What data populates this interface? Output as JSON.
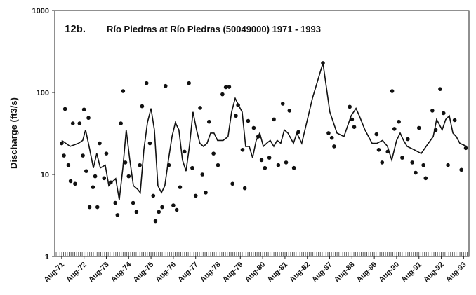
{
  "chart_data": {
    "type": "combo",
    "title_label": "12b.",
    "title": "Río Piedras at Río Piedras (50049000) 1971 - 1993",
    "y_label": "Discharge (ft3/s)",
    "yscale": "log",
    "ylim": [
      1,
      1000
    ],
    "yticks": [
      1,
      10,
      100,
      1000
    ],
    "xlim": [
      -0.31,
      18.24
    ],
    "xticks": [
      {
        "value": 0,
        "label": "Aug-71"
      },
      {
        "value": 1,
        "label": "Aug-72"
      },
      {
        "value": 2,
        "label": "Aug-73"
      },
      {
        "value": 3,
        "label": "Aug-74"
      },
      {
        "value": 4,
        "label": "Aug-75"
      },
      {
        "value": 5,
        "label": "Aug-76"
      },
      {
        "value": 6,
        "label": "Aug-77"
      },
      {
        "value": 7,
        "label": "Aug-78"
      },
      {
        "value": 8,
        "label": "Aug-79"
      },
      {
        "value": 9,
        "label": "Aug-80"
      },
      {
        "value": 10,
        "label": "Aug-81"
      },
      {
        "value": 11,
        "label": "Aug-82"
      },
      {
        "value": 12,
        "label": "Aug-87"
      },
      {
        "value": 13,
        "label": "Aug-88"
      },
      {
        "value": 14,
        "label": "Aug-89"
      },
      {
        "value": 15,
        "label": "Aug-90"
      },
      {
        "value": 16,
        "label": "Aug-91"
      },
      {
        "value": 17,
        "label": "Aug-92"
      },
      {
        "value": 18,
        "label": "Aug-93"
      }
    ],
    "series": [
      {
        "type": "line",
        "color": "#111111",
        "x": [
          0,
          0.38,
          0.75,
          0.94,
          1.07,
          1.26,
          1.42,
          1.57,
          1.73,
          1.95,
          2.11,
          2.26,
          2.42,
          2.58,
          2.74,
          2.89,
          3.05,
          3.21,
          3.4,
          3.52,
          3.68,
          3.84,
          4.0,
          4.15,
          4.31,
          4.47,
          4.62,
          4.78,
          4.94,
          5.09,
          5.25,
          5.41,
          5.57,
          5.72,
          5.88,
          6.04,
          6.19,
          6.35,
          6.51,
          6.67,
          6.82,
          6.98,
          7.23,
          7.45,
          7.61,
          7.77,
          7.92,
          8.08,
          8.24,
          8.4,
          8.55,
          8.71,
          8.87,
          9.03,
          9.18,
          9.34,
          9.5,
          9.65,
          9.81,
          9.97,
          10.13,
          10.38,
          10.53,
          10.75,
          11.23,
          11.7,
          12.01,
          12.33,
          12.64,
          12.96,
          13.18,
          13.33,
          13.58,
          13.9,
          14.12,
          14.37,
          14.59,
          14.78,
          15.0,
          15.16,
          15.31,
          15.47,
          15.79,
          16.1,
          16.42,
          16.64,
          16.79,
          17.04,
          17.2,
          17.36,
          17.52,
          17.67,
          17.83,
          18.14
        ],
        "values": [
          26,
          22,
          24,
          26,
          35,
          20,
          12,
          18,
          12,
          13,
          7.3,
          8.1,
          8.9,
          4.9,
          12,
          35,
          15,
          7.3,
          6.6,
          6.0,
          20,
          43,
          64,
          35,
          7.3,
          6.0,
          7.3,
          15,
          29,
          43,
          35,
          15,
          11,
          22,
          58,
          35,
          24,
          22,
          24,
          32,
          32,
          26,
          26,
          29,
          58,
          85,
          70,
          58,
          22,
          22,
          16,
          26,
          32,
          22,
          24,
          26,
          22,
          26,
          24,
          35,
          32,
          24,
          32,
          24,
          85,
          229,
          58,
          32,
          29,
          52,
          64,
          52,
          35,
          24,
          24,
          26,
          22,
          15,
          26,
          32,
          26,
          22,
          20,
          18,
          24,
          29,
          47,
          35,
          47,
          52,
          32,
          29,
          24,
          22
        ]
      },
      {
        "type": "scatter",
        "color": "#111111",
        "x": [
          0.0,
          0.15,
          0.1,
          0.3,
          0.4,
          0.6,
          0.5,
          0.8,
          0.95,
          1.0,
          1.1,
          1.2,
          1.25,
          1.4,
          1.5,
          1.6,
          1.7,
          1.9,
          2.0,
          2.2,
          2.4,
          2.5,
          2.65,
          2.75,
          2.85,
          3.0,
          3.2,
          3.35,
          3.5,
          3.6,
          3.8,
          3.95,
          4.1,
          4.2,
          4.35,
          4.5,
          4.65,
          4.8,
          5.0,
          5.15,
          5.3,
          5.5,
          5.7,
          5.85,
          6.0,
          6.2,
          6.3,
          6.45,
          6.6,
          6.8,
          7.0,
          7.2,
          7.35,
          7.5,
          7.65,
          7.8,
          7.9,
          8.1,
          8.2,
          8.35,
          8.6,
          8.8,
          8.95,
          9.1,
          9.3,
          9.5,
          9.7,
          9.9,
          10.05,
          10.2,
          10.4,
          10.6,
          11.7,
          11.95,
          12.1,
          12.2,
          12.9,
          13.0,
          13.1,
          14.1,
          14.2,
          14.35,
          14.6,
          14.8,
          14.9,
          15.1,
          15.25,
          15.5,
          15.7,
          15.85,
          16.0,
          16.2,
          16.3,
          16.6,
          16.75,
          16.95,
          17.1,
          17.3,
          17.6,
          17.9,
          18.1
        ],
        "values": [
          24,
          63,
          17,
          13,
          8.3,
          7.7,
          42,
          42,
          17,
          62,
          11,
          49,
          4,
          7,
          9.5,
          4,
          24,
          9,
          18,
          8,
          4.5,
          3.2,
          42,
          104,
          14,
          9.5,
          4.5,
          3.5,
          13,
          68,
          130,
          24,
          5.5,
          2.7,
          3.5,
          4,
          120,
          13,
          4.2,
          3.7,
          7,
          19,
          130,
          12,
          5.5,
          65,
          10,
          6,
          44,
          18,
          13,
          95,
          116,
          117,
          7.7,
          52,
          70,
          20,
          6.8,
          45,
          37,
          29,
          15,
          12,
          16,
          47,
          13,
          73,
          14,
          60,
          12,
          33,
          229,
          32,
          28,
          22,
          67,
          47,
          38,
          31,
          20,
          14,
          19,
          104,
          36,
          44,
          16,
          27,
          14,
          10.5,
          37,
          13,
          9,
          60,
          35,
          110,
          56,
          13,
          46,
          11.4,
          21
        ]
      }
    ]
  }
}
